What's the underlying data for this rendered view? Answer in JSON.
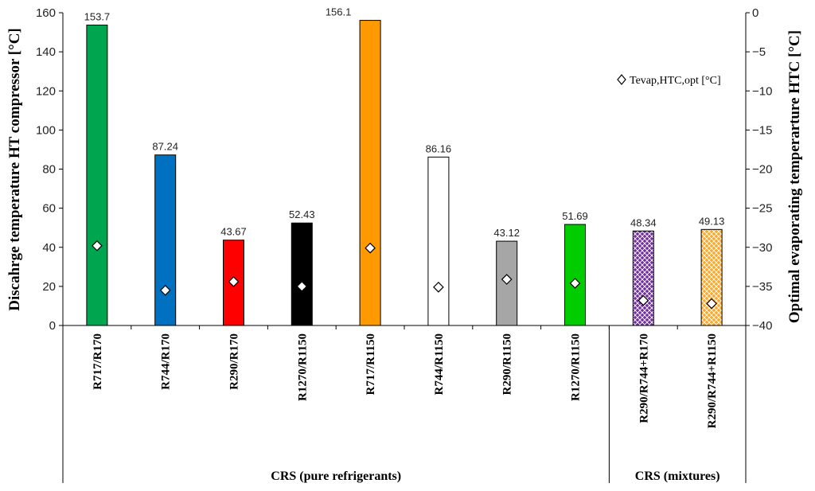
{
  "chart_data": {
    "type": "bar",
    "categories": [
      "R717/R170",
      "R744/R170",
      "R290/R170",
      "R1270/R1150",
      "R717/R1150",
      "R744/R1150",
      "R290/R1150",
      "R1270/R1150",
      "R290/R744+R170",
      "R290/R744+R1150"
    ],
    "series": [
      {
        "name": "Discahrge temperature HT compressor [°C]",
        "axis": "left",
        "values": [
          153.7,
          87.24,
          43.67,
          52.43,
          156.1,
          86.16,
          43.12,
          51.69,
          48.34,
          49.13
        ],
        "labels": [
          "153.7",
          "87.24",
          "43.67",
          "52.43",
          "156.1",
          "86.16",
          "43.12",
          "51.69",
          "48.34",
          "49.13"
        ],
        "colors": [
          "#00a54f",
          "#0070c0",
          "#ff0000",
          "#000000",
          "#ff9900",
          "#ffffff",
          "#a6a6a6",
          "#00cc00",
          "#7030a0",
          "#ffa726"
        ],
        "patterns": [
          "solid",
          "solid",
          "solid",
          "solid",
          "solid",
          "solid",
          "solid",
          "solid",
          "crosshatch",
          "crosshatch"
        ]
      },
      {
        "name": "Tevap,HTC,opt [°C]",
        "axis": "right",
        "type": "scatter",
        "marker": "diamond",
        "values": [
          -29.8,
          -35.5,
          -34.4,
          -35.0,
          -30.1,
          -35.1,
          -34.1,
          -34.6,
          -36.8,
          -37.2
        ]
      }
    ],
    "ylabel": "Discahrge temperature HT compressor [°C]",
    "y2label": "Optimal evaporating temperarture HTC [°C]",
    "ylim": [
      0,
      160
    ],
    "yticks": [
      0,
      20,
      40,
      60,
      80,
      100,
      120,
      140,
      160
    ],
    "y2lim": [
      -40,
      0
    ],
    "y2ticks": [
      -40,
      -35,
      -30,
      -25,
      -20,
      -15,
      -10,
      -5,
      0
    ],
    "y2tick_labels": [
      "−40",
      "−35",
      "−30",
      "−25",
      "−20",
      "−15",
      "−10",
      "−5",
      "0"
    ],
    "groups": [
      {
        "label": "CRS (pure refrigerants)",
        "count": 8
      },
      {
        "label": "CRS (mixtures)",
        "count": 2
      }
    ],
    "legend": {
      "label": "Tevap,HTC,opt [°C]",
      "position": "top-right"
    },
    "grid": false
  }
}
